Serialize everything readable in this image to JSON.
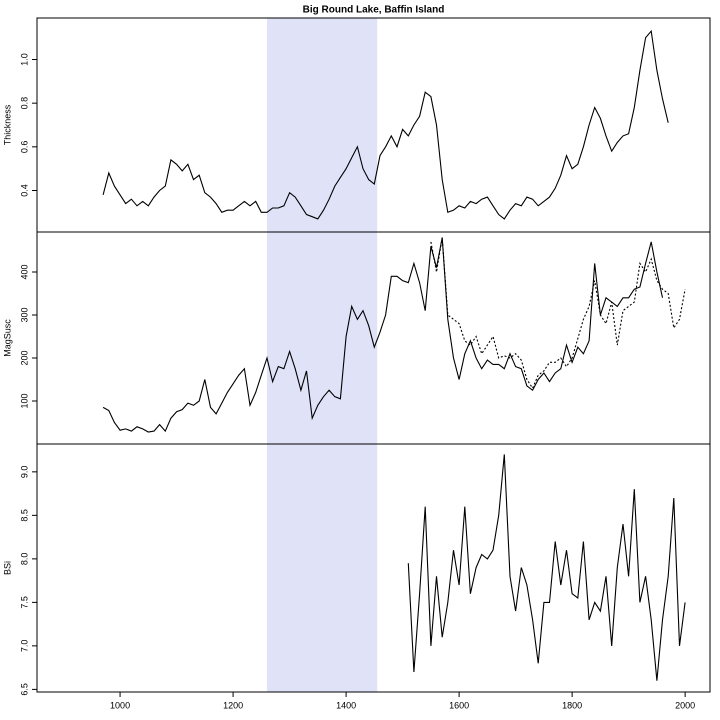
{
  "chart_data": [
    {
      "type": "line",
      "title": "Big Round Lake, Baffin Island",
      "y_label": "Thickness",
      "xlim": [
        853,
        2044
      ],
      "ylim": [
        0.21,
        1.19
      ],
      "yticks": [
        0.4,
        0.6,
        0.8,
        {
          "value": 1,
          "label": "1.0"
        }
      ],
      "shade": [
        1260,
        1455
      ],
      "shade_color": "#e0e2f8",
      "x": [
        970,
        980,
        990,
        1000,
        1010,
        1020,
        1030,
        1040,
        1050,
        1060,
        1070,
        1080,
        1090,
        1100,
        1110,
        1120,
        1130,
        1140,
        1150,
        1160,
        1170,
        1180,
        1190,
        1200,
        1210,
        1220,
        1230,
        1240,
        1250,
        1260,
        1270,
        1280,
        1290,
        1300,
        1310,
        1320,
        1330,
        1340,
        1350,
        1360,
        1370,
        1380,
        1390,
        1400,
        1410,
        1420,
        1430,
        1440,
        1450,
        1460,
        1470,
        1480,
        1490,
        1500,
        1510,
        1520,
        1530,
        1540,
        1550,
        1560,
        1570,
        1580,
        1590,
        1600,
        1610,
        1620,
        1630,
        1640,
        1650,
        1660,
        1670,
        1680,
        1690,
        1700,
        1710,
        1720,
        1730,
        1740,
        1750,
        1760,
        1770,
        1780,
        1790,
        1800,
        1810,
        1820,
        1830,
        1840,
        1850,
        1860,
        1870,
        1880,
        1890,
        1900,
        1910,
        1920,
        1930,
        1940,
        1950,
        1960,
        1970,
        1980,
        1990,
        2000
      ],
      "series": [
        {
          "color": "#000000",
          "dash": false,
          "values": [
            0.38,
            0.48,
            0.42,
            0.38,
            0.34,
            0.36,
            0.33,
            0.35,
            0.33,
            0.37,
            0.4,
            0.42,
            0.54,
            0.52,
            0.49,
            0.52,
            0.45,
            0.47,
            0.39,
            0.37,
            0.34,
            0.3,
            0.31,
            0.31,
            0.33,
            0.35,
            0.33,
            0.35,
            0.3,
            0.3,
            0.32,
            0.32,
            0.33,
            0.39,
            0.37,
            0.33,
            0.29,
            0.28,
            0.27,
            0.31,
            0.36,
            0.42,
            0.46,
            0.5,
            0.55,
            0.6,
            0.5,
            0.45,
            0.43,
            0.56,
            0.6,
            0.65,
            0.6,
            0.68,
            0.65,
            0.7,
            0.74,
            0.85,
            0.83,
            0.7,
            0.45,
            0.3,
            0.31,
            0.33,
            0.32,
            0.35,
            0.34,
            0.36,
            0.37,
            0.33,
            0.29,
            0.27,
            0.31,
            0.34,
            0.33,
            0.37,
            0.36,
            0.33,
            0.35,
            0.37,
            0.41,
            0.47,
            0.56,
            0.5,
            0.52,
            0.6,
            0.7,
            0.78,
            0.73,
            0.65,
            0.58,
            0.62,
            0.65,
            0.66,
            0.78,
            0.95,
            1.1,
            1.13,
            0.95,
            0.82,
            0.71,
            null,
            null,
            null
          ]
        }
      ]
    },
    {
      "type": "line",
      "y_label": "MagSusc",
      "xlim": [
        853,
        2044
      ],
      "ylim": [
        0,
        493
      ],
      "yticks": [
        100,
        200,
        300,
        400
      ],
      "shade": [
        1260,
        1455
      ],
      "shade_color": "#e0e2f8",
      "x": [
        970,
        980,
        990,
        1000,
        1010,
        1020,
        1030,
        1040,
        1050,
        1060,
        1070,
        1080,
        1090,
        1100,
        1110,
        1120,
        1130,
        1140,
        1150,
        1160,
        1170,
        1180,
        1190,
        1200,
        1210,
        1220,
        1230,
        1240,
        1250,
        1260,
        1270,
        1280,
        1290,
        1300,
        1310,
        1320,
        1330,
        1340,
        1350,
        1360,
        1370,
        1380,
        1390,
        1400,
        1410,
        1420,
        1430,
        1440,
        1450,
        1460,
        1470,
        1480,
        1490,
        1500,
        1510,
        1520,
        1530,
        1540,
        1550,
        1560,
        1570,
        1580,
        1590,
        1600,
        1610,
        1620,
        1630,
        1640,
        1650,
        1660,
        1670,
        1680,
        1690,
        1700,
        1710,
        1720,
        1730,
        1740,
        1750,
        1760,
        1770,
        1780,
        1790,
        1800,
        1810,
        1820,
        1830,
        1840,
        1850,
        1860,
        1870,
        1880,
        1890,
        1900,
        1910,
        1920,
        1930,
        1940,
        1950,
        1960,
        1970,
        1980,
        1990,
        2000
      ],
      "series": [
        {
          "color": "#000000",
          "dash": false,
          "values": [
            85,
            78,
            50,
            32,
            35,
            30,
            40,
            35,
            28,
            30,
            45,
            30,
            60,
            75,
            80,
            95,
            90,
            100,
            150,
            85,
            70,
            95,
            120,
            140,
            160,
            175,
            90,
            120,
            160,
            200,
            145,
            180,
            175,
            215,
            175,
            125,
            170,
            60,
            90,
            110,
            125,
            110,
            105,
            250,
            320,
            290,
            310,
            275,
            225,
            260,
            300,
            390,
            390,
            380,
            375,
            420,
            375,
            310,
            460,
            410,
            480,
            290,
            200,
            150,
            210,
            240,
            200,
            175,
            195,
            185,
            185,
            175,
            210,
            180,
            175,
            135,
            125,
            150,
            165,
            145,
            165,
            175,
            230,
            190,
            225,
            210,
            240,
            420,
            300,
            340,
            330,
            320,
            340,
            340,
            360,
            365,
            420,
            470,
            400,
            340,
            null,
            null,
            null,
            null
          ]
        },
        {
          "color": "#000000",
          "dash": true,
          "values": [
            null,
            null,
            null,
            null,
            null,
            null,
            null,
            null,
            null,
            null,
            null,
            null,
            null,
            null,
            null,
            null,
            null,
            null,
            null,
            null,
            null,
            null,
            null,
            null,
            null,
            null,
            null,
            null,
            null,
            null,
            null,
            null,
            null,
            null,
            null,
            null,
            null,
            null,
            null,
            null,
            null,
            null,
            null,
            null,
            null,
            null,
            null,
            null,
            null,
            null,
            null,
            null,
            null,
            null,
            null,
            null,
            null,
            null,
            470,
            400,
            480,
            300,
            290,
            280,
            240,
            230,
            250,
            210,
            230,
            250,
            200,
            205,
            200,
            210,
            195,
            150,
            130,
            160,
            170,
            190,
            190,
            200,
            180,
            200,
            245,
            290,
            320,
            380,
            300,
            280,
            330,
            230,
            310,
            320,
            330,
            420,
            400,
            430,
            380,
            360,
            350,
            270,
            290,
            360
          ]
        }
      ]
    },
    {
      "type": "line",
      "y_label": "BSi",
      "xlim": [
        853,
        2044
      ],
      "ylim": [
        6.47,
        9.32
      ],
      "yticks": [
        6.5,
        {
          "value": 7,
          "label": "7.0"
        },
        7.5,
        {
          "value": 8,
          "label": "8.0"
        },
        8.5,
        {
          "value": 9,
          "label": "9.0"
        }
      ],
      "xticks": [
        1000,
        1200,
        1400,
        1600,
        1800,
        2000
      ],
      "shade": [
        1260,
        1455
      ],
      "shade_color": "#e0e2f8",
      "x": [
        970,
        980,
        990,
        1000,
        1010,
        1020,
        1030,
        1040,
        1050,
        1060,
        1070,
        1080,
        1090,
        1100,
        1110,
        1120,
        1130,
        1140,
        1150,
        1160,
        1170,
        1180,
        1190,
        1200,
        1210,
        1220,
        1230,
        1240,
        1250,
        1260,
        1270,
        1280,
        1290,
        1300,
        1310,
        1320,
        1330,
        1340,
        1350,
        1360,
        1370,
        1380,
        1390,
        1400,
        1410,
        1420,
        1430,
        1440,
        1450,
        1460,
        1470,
        1480,
        1490,
        1500,
        1510,
        1520,
        1530,
        1540,
        1550,
        1560,
        1570,
        1580,
        1590,
        1600,
        1610,
        1620,
        1630,
        1640,
        1650,
        1660,
        1670,
        1680,
        1690,
        1700,
        1710,
        1720,
        1730,
        1740,
        1750,
        1760,
        1770,
        1780,
        1790,
        1800,
        1810,
        1820,
        1830,
        1840,
        1850,
        1860,
        1870,
        1880,
        1890,
        1900,
        1910,
        1920,
        1930,
        1940,
        1950,
        1960,
        1970,
        1980,
        1990,
        2000
      ],
      "series": [
        {
          "color": "#000000",
          "dash": false,
          "values": [
            null,
            null,
            null,
            null,
            null,
            null,
            null,
            null,
            null,
            null,
            null,
            null,
            null,
            null,
            null,
            null,
            null,
            null,
            null,
            null,
            null,
            null,
            null,
            null,
            null,
            null,
            null,
            null,
            null,
            null,
            null,
            null,
            null,
            null,
            null,
            null,
            null,
            null,
            null,
            null,
            null,
            null,
            null,
            null,
            null,
            null,
            null,
            null,
            null,
            null,
            null,
            null,
            null,
            null,
            7.95,
            6.7,
            7.6,
            8.6,
            7.0,
            7.8,
            7.1,
            7.5,
            8.1,
            7.7,
            8.6,
            7.6,
            7.9,
            8.05,
            8.0,
            8.1,
            8.5,
            9.2,
            7.8,
            7.4,
            7.9,
            7.7,
            7.3,
            6.8,
            7.5,
            7.5,
            8.2,
            7.7,
            8.1,
            7.6,
            7.55,
            8.2,
            7.3,
            7.5,
            7.4,
            7.8,
            7.0,
            7.9,
            8.4,
            7.8,
            8.8,
            7.5,
            7.8,
            7.3,
            6.6,
            7.3,
            7.8,
            8.7,
            7.0,
            7.5
          ]
        }
      ]
    }
  ]
}
